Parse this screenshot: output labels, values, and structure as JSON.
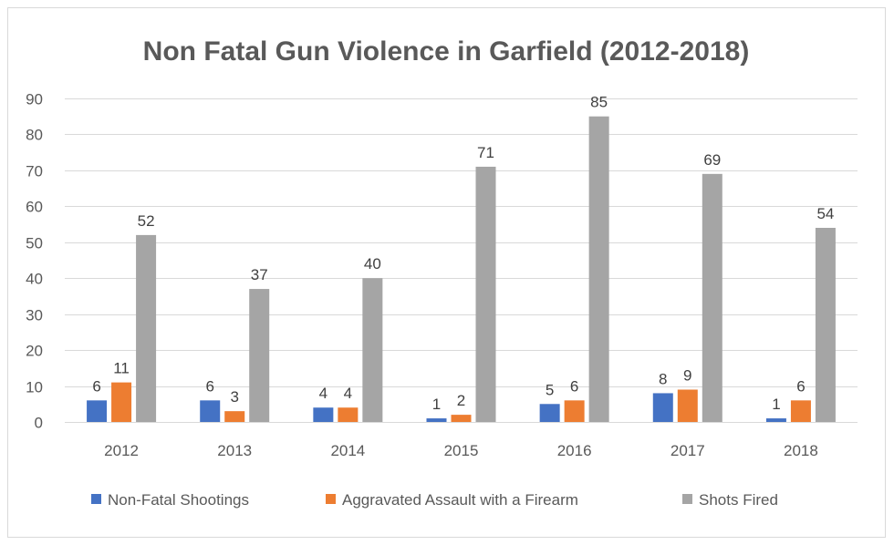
{
  "chart_data": {
    "type": "bar",
    "title": "Non Fatal Gun Violence in Garfield (2012-2018)",
    "xlabel": "",
    "ylabel": "",
    "ylim": [
      0,
      90
    ],
    "yticks": [
      0,
      10,
      20,
      30,
      40,
      50,
      60,
      70,
      80,
      90
    ],
    "grid": true,
    "legend_position": "bottom",
    "categories": [
      "2012",
      "2013",
      "2014",
      "2015",
      "2016",
      "2017",
      "2018"
    ],
    "series": [
      {
        "name": "Non-Fatal Shootings",
        "color": "#4472C4",
        "values": [
          6,
          6,
          4,
          1,
          5,
          8,
          1
        ]
      },
      {
        "name": "Aggravated Assault with a Firearm",
        "color": "#ED7D31",
        "values": [
          11,
          3,
          4,
          2,
          6,
          9,
          6
        ]
      },
      {
        "name": "Shots Fired",
        "color": "#A5A5A5",
        "values": [
          52,
          37,
          40,
          71,
          85,
          69,
          54
        ]
      }
    ]
  }
}
